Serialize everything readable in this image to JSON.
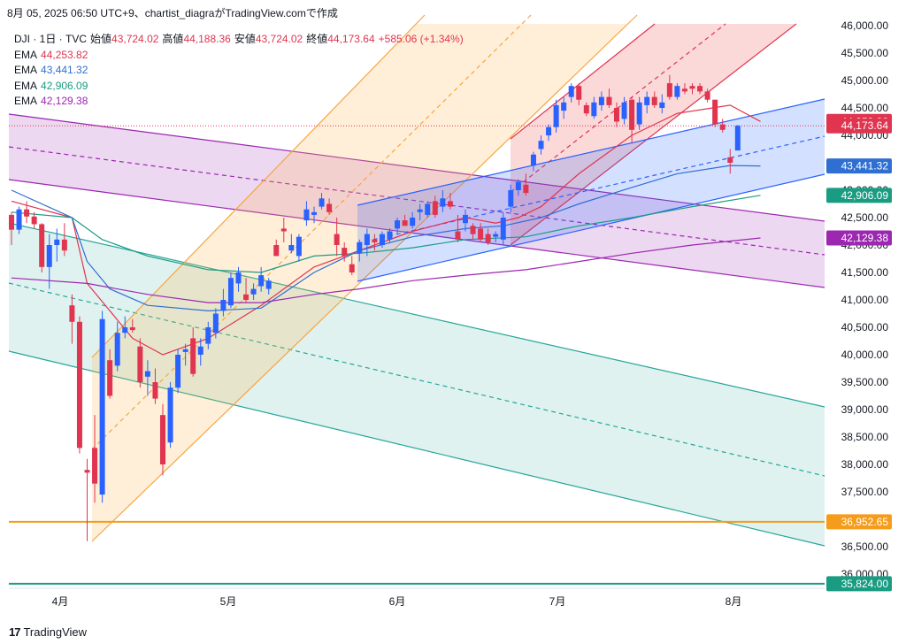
{
  "header": {
    "caption": "8月 05, 2025 06:50 UTC+9、chartist_diagraがTradingView.comで作成"
  },
  "legend": {
    "symbol": "DJI · 1日 · TVC",
    "open_label": "始値",
    "open": "43,724.02",
    "high_label": "高値",
    "high": "44,188.36",
    "low_label": "安値",
    "low": "43,724.02",
    "close_label": "終値",
    "close": "44,173.64",
    "change": "+585.06 (+1.34%)",
    "ema": [
      {
        "label": "EMA",
        "value": "44,253.82",
        "color": "#e0344f"
      },
      {
        "label": "EMA",
        "value": "43,441.32",
        "color": "#2f6fd1"
      },
      {
        "label": "EMA",
        "value": "42,906.09",
        "color": "#1a9c82"
      },
      {
        "label": "EMA",
        "value": "42,129.38",
        "color": "#9c27b0"
      }
    ]
  },
  "footer": {
    "brand": "TradingView",
    "logo": "tradingview-logo"
  },
  "colors": {
    "up": "#2962ff",
    "down": "#e0344f"
  },
  "chart_data": {
    "type": "candlestick",
    "x_ticks": [
      "4月",
      "5月",
      "6月",
      "7月",
      "8月"
    ],
    "y_ticks": [
      "46,000.00",
      "45,500.00",
      "45,000.00",
      "44,500.00",
      "44,000.00",
      "43,500.00",
      "43,000.00",
      "42,500.00",
      "42,000.00",
      "41,500.00",
      "41,000.00",
      "40,500.00",
      "40,000.00",
      "39,500.00",
      "39,000.00",
      "38,500.00",
      "38,000.00",
      "37,500.00",
      "37,000.00",
      "36,500.00",
      "36,000.00"
    ],
    "ylim": [
      35700,
      46100
    ],
    "price_labels": [
      {
        "text": "44,253.82",
        "value": 44253.82,
        "color": "#e0344f"
      },
      {
        "text": "44,173.64",
        "value": 44173.64,
        "color": "#e0344f"
      },
      {
        "text": "43,441.32",
        "value": 43441.32,
        "color": "#2f6fd1"
      },
      {
        "text": "42,906.09",
        "value": 42906.09,
        "color": "#1a9c82"
      },
      {
        "text": "42,129.38",
        "value": 42129.38,
        "color": "#9c27b0"
      },
      {
        "text": "36,952.65",
        "value": 36952.65,
        "color": "#f59c1a"
      },
      {
        "text": "35,824.00",
        "value": 35824.0,
        "color": "#1a9c82"
      }
    ],
    "horizontal_lines": [
      {
        "value": 36952.65,
        "color": "#f59c1a"
      },
      {
        "value": 35824.0,
        "color": "#1a9c82"
      },
      {
        "value": 44173.64,
        "color": "#e0344f",
        "dotted": true
      }
    ],
    "ohlc": [
      [
        42550,
        42600,
        42000,
        42280
      ],
      [
        42280,
        42700,
        42200,
        42650
      ],
      [
        42650,
        42800,
        42400,
        42520
      ],
      [
        42520,
        42600,
        42300,
        42380
      ],
      [
        42380,
        42400,
        41500,
        41600
      ],
      [
        41600,
        42200,
        41200,
        42000
      ],
      [
        42000,
        42300,
        41700,
        42100
      ],
      [
        42100,
        42400,
        41800,
        41900
      ],
      [
        40900,
        41100,
        40200,
        40600
      ],
      [
        40600,
        40700,
        38200,
        38300
      ],
      [
        37900,
        38100,
        36600,
        37850
      ],
      [
        38300,
        38900,
        37300,
        37650
      ],
      [
        37450,
        40800,
        37300,
        40650
      ],
      [
        39900,
        40100,
        39200,
        39250
      ],
      [
        39800,
        40600,
        39700,
        40400
      ],
      [
        40400,
        40700,
        40300,
        40500
      ],
      [
        40500,
        40650,
        40400,
        40450
      ],
      [
        40150,
        40300,
        39400,
        39500
      ],
      [
        39600,
        39900,
        39250,
        39700
      ],
      [
        39500,
        39750,
        39100,
        39200
      ],
      [
        38900,
        39100,
        37800,
        38000
      ],
      [
        38400,
        39500,
        38300,
        39400
      ],
      [
        39400,
        40100,
        39300,
        40000
      ],
      [
        40050,
        40200,
        39800,
        40100
      ],
      [
        40300,
        40500,
        39600,
        39650
      ],
      [
        40000,
        40300,
        39800,
        40150
      ],
      [
        40200,
        40600,
        40100,
        40500
      ],
      [
        40400,
        40850,
        40300,
        40750
      ],
      [
        40800,
        41200,
        40700,
        41000
      ],
      [
        40900,
        41500,
        40850,
        41400
      ],
      [
        41300,
        41600,
        41150,
        41500
      ],
      [
        41100,
        41400,
        40950,
        41000
      ],
      [
        41100,
        41300,
        41000,
        41200
      ],
      [
        41250,
        41600,
        41150,
        41450
      ],
      [
        41200,
        41400,
        41100,
        41350
      ],
      [
        42000,
        42100,
        41800,
        41800
      ],
      [
        42300,
        42500,
        42050,
        42250
      ],
      [
        41900,
        42200,
        41850,
        42000
      ],
      [
        41800,
        42200,
        41700,
        42150
      ],
      [
        42450,
        42800,
        42350,
        42650
      ],
      [
        42550,
        42700,
        42400,
        42600
      ],
      [
        42700,
        42950,
        42650,
        42850
      ],
      [
        42750,
        42850,
        42550,
        42600
      ],
      [
        42200,
        42500,
        41800,
        42000
      ],
      [
        41950,
        42050,
        41700,
        41800
      ],
      [
        41650,
        41800,
        41450,
        41500
      ],
      [
        41850,
        42100,
        41700,
        42050
      ],
      [
        42000,
        42300,
        41800,
        42200
      ],
      [
        42100,
        42200,
        41900,
        42050
      ],
      [
        42000,
        42250,
        41950,
        42200
      ],
      [
        42100,
        42300,
        42050,
        42250
      ],
      [
        42300,
        42500,
        42200,
        42450
      ],
      [
        42450,
        42550,
        42350,
        42350
      ],
      [
        42350,
        42600,
        42300,
        42500
      ],
      [
        42600,
        42750,
        42450,
        42650
      ],
      [
        42550,
        42800,
        42500,
        42750
      ],
      [
        42800,
        42900,
        42500,
        42550
      ],
      [
        42700,
        43000,
        42600,
        42850
      ],
      [
        42800,
        42950,
        42650,
        42700
      ],
      [
        42250,
        42550,
        42050,
        42100
      ],
      [
        42400,
        42650,
        42250,
        42550
      ],
      [
        42350,
        42400,
        42100,
        42200
      ],
      [
        42300,
        42400,
        42050,
        42100
      ],
      [
        42200,
        42300,
        42000,
        42050
      ],
      [
        42150,
        42250,
        42050,
        42200
      ],
      [
        42100,
        42600,
        42000,
        42500
      ],
      [
        42700,
        43100,
        42600,
        43000
      ],
      [
        43000,
        43200,
        42900,
        43150
      ],
      [
        43100,
        43300,
        42900,
        42950
      ],
      [
        43450,
        43700,
        43350,
        43650
      ],
      [
        43750,
        44000,
        43650,
        43900
      ],
      [
        44000,
        44200,
        43900,
        44150
      ],
      [
        44150,
        44650,
        44050,
        44550
      ],
      [
        44450,
        44700,
        44300,
        44600
      ],
      [
        44700,
        44950,
        44600,
        44900
      ],
      [
        44900,
        44950,
        44550,
        44650
      ],
      [
        44550,
        44600,
        44350,
        44400
      ],
      [
        44350,
        44700,
        44300,
        44600
      ],
      [
        44550,
        44800,
        44450,
        44700
      ],
      [
        44700,
        44850,
        44500,
        44550
      ],
      [
        44500,
        44600,
        44150,
        44250
      ],
      [
        44300,
        44700,
        44200,
        44600
      ],
      [
        44650,
        44700,
        43850,
        44100
      ],
      [
        44200,
        44700,
        44100,
        44600
      ],
      [
        44550,
        44800,
        44400,
        44700
      ],
      [
        44700,
        44800,
        44500,
        44550
      ],
      [
        44500,
        44750,
        44400,
        44600
      ],
      [
        44950,
        45100,
        44650,
        44700
      ],
      [
        44700,
        44950,
        44650,
        44900
      ],
      [
        44850,
        44950,
        44750,
        44800
      ],
      [
        44900,
        44950,
        44750,
        44850
      ],
      [
        44900,
        44950,
        44750,
        44800
      ],
      [
        44800,
        44850,
        44600,
        44650
      ],
      [
        44650,
        44650,
        44150,
        44200
      ],
      [
        44200,
        44300,
        44050,
        44100
      ],
      [
        43600,
        43750,
        43300,
        43500
      ],
      [
        43724.02,
        44188.36,
        43724.02,
        44173.64
      ]
    ],
    "ema_series": [
      {
        "color": "#e0344f",
        "x": [
          0,
          8,
          10,
          13,
          16,
          20,
          26,
          33,
          40,
          46,
          53,
          60,
          64,
          67,
          70,
          75,
          82,
          88,
          95,
          99
        ],
        "y": [
          42800,
          42500,
          41300,
          40800,
          40300,
          40000,
          40300,
          40900,
          41600,
          41900,
          42250,
          42500,
          42400,
          42500,
          42700,
          43300,
          44000,
          44400,
          44550,
          44253.82
        ]
      },
      {
        "color": "#2f6fd1",
        "x": [
          0,
          8,
          10,
          13,
          18,
          26,
          33,
          40,
          46,
          53,
          60,
          65,
          70,
          75,
          82,
          88,
          95,
          99
        ],
        "y": [
          43000,
          42500,
          41700,
          41200,
          40900,
          40800,
          40850,
          41500,
          41900,
          42150,
          42300,
          42350,
          42500,
          42750,
          43050,
          43300,
          43450,
          43441.32
        ]
      },
      {
        "color": "#1a9c82",
        "x": [
          0,
          8,
          12,
          18,
          26,
          33,
          40,
          46,
          53,
          60,
          68,
          75,
          82,
          90,
          99
        ],
        "y": [
          42600,
          42500,
          42100,
          41800,
          41550,
          41500,
          41800,
          41850,
          41950,
          42100,
          42150,
          42350,
          42500,
          42700,
          42906.09
        ]
      },
      {
        "color": "#9c27b0",
        "x": [
          0,
          10,
          18,
          26,
          33,
          40,
          46,
          53,
          60,
          68,
          75,
          82,
          90,
          99
        ],
        "y": [
          41400,
          41300,
          41100,
          40950,
          40950,
          41100,
          41200,
          41350,
          41450,
          41550,
          41700,
          41850,
          42000,
          42129.38
        ]
      }
    ]
  }
}
